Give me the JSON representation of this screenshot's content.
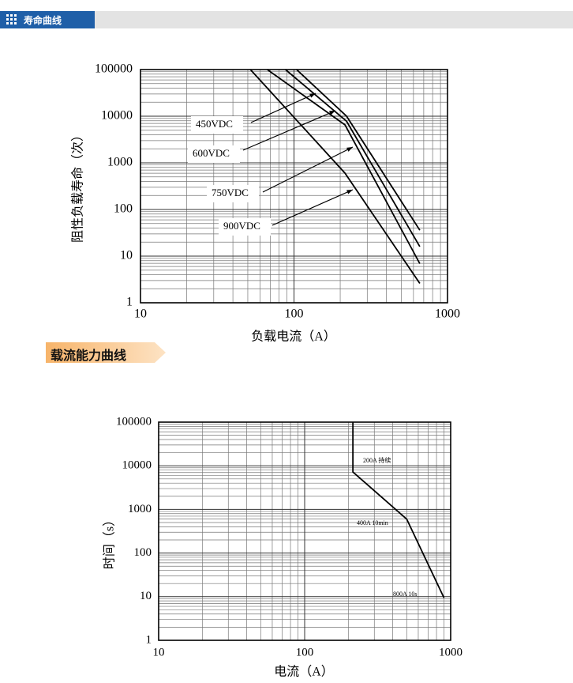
{
  "header": {
    "title": "寿命曲线"
  },
  "section": {
    "title": "载流能力曲线"
  },
  "chart_data": [
    {
      "type": "line",
      "xlabel": "负载电流（A）",
      "ylabel": "阻性负载寿命（次）",
      "xscale": "log",
      "yscale": "log",
      "grid": true,
      "minor_grid": true,
      "xlim": [
        10,
        1000
      ],
      "ylim": [
        1,
        100000
      ],
      "xticks": [
        10,
        100,
        1000
      ],
      "yticks": [
        1,
        10,
        100,
        1000,
        10000,
        100000
      ],
      "series": [
        {
          "name": "450VDC",
          "color": "#000000",
          "x": [
            104,
            220,
            660
          ],
          "values": [
            100000,
            10000,
            36
          ]
        },
        {
          "name": "600VDC",
          "color": "#000000",
          "x": [
            88,
            220,
            660
          ],
          "values": [
            100000,
            7800,
            16
          ]
        },
        {
          "name": "750VDC",
          "color": "#000000",
          "x": [
            67,
            215,
            660
          ],
          "values": [
            100000,
            6500,
            6.9
          ]
        },
        {
          "name": "900VDC",
          "color": "#000000",
          "x": [
            52,
            215,
            660
          ],
          "values": [
            100000,
            600,
            2.6
          ]
        }
      ]
    },
    {
      "type": "line",
      "xlabel": "电流（A）",
      "ylabel": "时间（s）",
      "xscale": "log",
      "yscale": "log",
      "grid": true,
      "minor_grid": true,
      "xlim": [
        10,
        1000
      ],
      "ylim": [
        1,
        100000
      ],
      "xticks": [
        10,
        100,
        1000
      ],
      "yticks": [
        1,
        10,
        100,
        1000,
        10000,
        100000
      ],
      "series": [
        {
          "color": "#000000",
          "x": [
            214,
            214,
            500,
            900
          ],
          "values": [
            100000,
            7200,
            600,
            9.4
          ]
        }
      ],
      "annotations": [
        "200A 持续",
        "400A 10min",
        "800A 10s"
      ]
    }
  ]
}
